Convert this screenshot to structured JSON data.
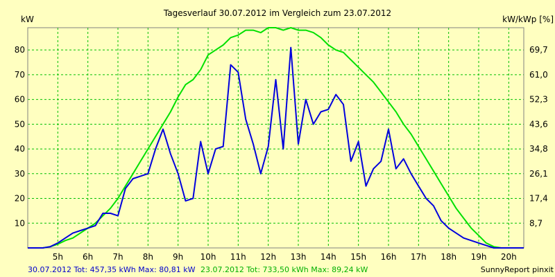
{
  "chart_data": {
    "type": "line",
    "title": "Tagesverlauf 30.07.2012 im Vergleich zum 23.07.2012",
    "left_unit": "kW",
    "right_unit": "kW/kWp [%]",
    "x_ticks": [
      "5h",
      "6h",
      "7h",
      "8h",
      "9h",
      "10h",
      "11h",
      "12h",
      "13h",
      "14h",
      "15h",
      "16h",
      "17h",
      "18h",
      "19h",
      "20h"
    ],
    "y_ticks": [
      10,
      20,
      30,
      40,
      50,
      60,
      70,
      80
    ],
    "y_right_ticks": [
      "8,7",
      "17,4",
      "26,1",
      "34,8",
      "43,6",
      "52,3",
      "61,0",
      "69,7"
    ],
    "xlim": [
      4.0,
      20.5
    ],
    "ylim": [
      0,
      89
    ],
    "grid": true,
    "series": [
      {
        "name": "30.07.2012",
        "color": "#0000DD",
        "x": [
          4.0,
          4.5,
          4.75,
          5.0,
          5.25,
          5.5,
          5.75,
          6.0,
          6.25,
          6.5,
          6.75,
          7.0,
          7.25,
          7.5,
          7.75,
          8.0,
          8.25,
          8.5,
          8.75,
          9.0,
          9.25,
          9.5,
          9.75,
          10.0,
          10.25,
          10.5,
          10.75,
          11.0,
          11.25,
          11.5,
          11.75,
          12.0,
          12.25,
          12.5,
          12.75,
          13.0,
          13.25,
          13.5,
          13.75,
          14.0,
          14.25,
          14.5,
          14.75,
          15.0,
          15.25,
          15.5,
          15.75,
          16.0,
          16.25,
          16.5,
          16.75,
          17.0,
          17.25,
          17.5,
          17.75,
          18.0,
          18.25,
          18.5,
          18.75,
          19.0,
          19.25,
          19.5,
          19.75,
          20.0,
          20.5
        ],
        "values": [
          0,
          0,
          0.5,
          2,
          4,
          6,
          7,
          8,
          9,
          14,
          14,
          13,
          24,
          28,
          29,
          30,
          40,
          48,
          38,
          30,
          19,
          20,
          43,
          30,
          40,
          41,
          74,
          71,
          52,
          42,
          30,
          41,
          68,
          40,
          81,
          42,
          60,
          50,
          55,
          56,
          62,
          58,
          35,
          43,
          25,
          32,
          35,
          48,
          32,
          36,
          30,
          25,
          20,
          17,
          11,
          8,
          6,
          4,
          3,
          2,
          1,
          0,
          0,
          0,
          0
        ]
      },
      {
        "name": "23.07.2012",
        "color": "#00E000",
        "x": [
          4.0,
          4.5,
          4.75,
          5.0,
          5.25,
          5.5,
          5.75,
          6.0,
          6.25,
          6.5,
          6.75,
          7.0,
          7.25,
          7.5,
          7.75,
          8.0,
          8.25,
          8.5,
          8.75,
          9.0,
          9.25,
          9.5,
          9.75,
          10.0,
          10.25,
          10.5,
          10.75,
          11.0,
          11.25,
          11.5,
          11.75,
          12.0,
          12.25,
          12.5,
          12.75,
          13.0,
          13.25,
          13.5,
          13.75,
          14.0,
          14.25,
          14.5,
          14.75,
          15.0,
          15.25,
          15.5,
          15.75,
          16.0,
          16.25,
          16.5,
          16.75,
          17.0,
          17.25,
          17.5,
          17.75,
          18.0,
          18.25,
          18.5,
          18.75,
          19.0,
          19.25,
          19.5,
          19.75,
          20.0,
          20.5
        ],
        "values": [
          0,
          0,
          0.5,
          1.5,
          3,
          4,
          6,
          8,
          10,
          13,
          16,
          20,
          25,
          30,
          35,
          40,
          45,
          50,
          55,
          61,
          66,
          68,
          72,
          78,
          80,
          82,
          85,
          86,
          88,
          88,
          87,
          89,
          89,
          88,
          89,
          88,
          88,
          87,
          85,
          82,
          80,
          79,
          76,
          73,
          70,
          67,
          63,
          59,
          55,
          50,
          46,
          41,
          36,
          31,
          26,
          21,
          16,
          12,
          8,
          5,
          2,
          0.5,
          0,
          0,
          0
        ]
      }
    ]
  },
  "footer": {
    "series1_stats": "30.07.2012 Tot: 457,35 kWh Max: 80,81 kW",
    "series2_stats": "23.07.2012 Tot: 733,50 kWh Max: 89,24 kW",
    "credit": "SunnyReport pinxit"
  },
  "colors": {
    "background": "#FFFFC0",
    "grid": "#00C000",
    "series1": "#0000DD",
    "series2": "#00E000",
    "footer_series1": "#0000CC",
    "footer_series2": "#00B000"
  }
}
